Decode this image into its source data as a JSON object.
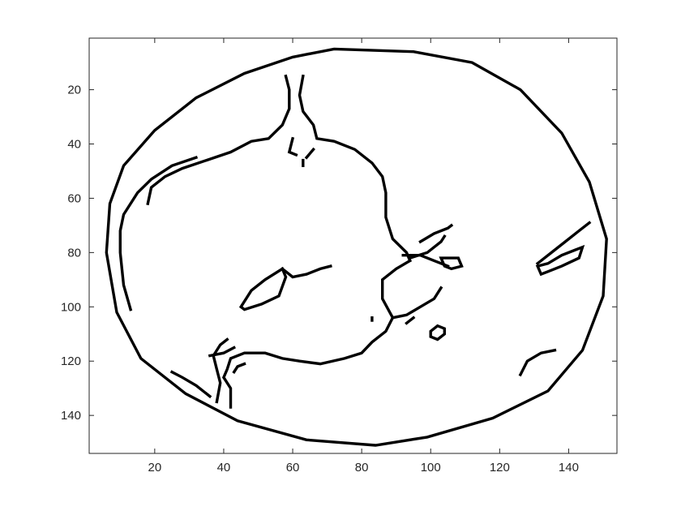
{
  "chart_data": {
    "type": "image",
    "description_type": "binary edge map",
    "xlim": [
      1,
      154
    ],
    "ylim": [
      1,
      154
    ],
    "y_reversed": true,
    "xticks": [
      20,
      40,
      60,
      80,
      100,
      120,
      140
    ],
    "yticks": [
      20,
      40,
      60,
      80,
      100,
      120,
      140
    ],
    "xtick_labels": [
      "20",
      "40",
      "60",
      "80",
      "100",
      "120",
      "140"
    ],
    "ytick_labels": [
      "20",
      "40",
      "60",
      "80",
      "100",
      "120",
      "140"
    ],
    "colors": {
      "edge": "#000000",
      "background": "#ffffff",
      "axis": "#262626"
    },
    "paths": [
      {
        "name": "outer-ellipse",
        "closed": true,
        "points": [
          [
            72,
            5
          ],
          [
            95,
            6
          ],
          [
            112,
            10
          ],
          [
            126,
            20
          ],
          [
            138,
            36
          ],
          [
            146,
            54
          ],
          [
            151,
            75
          ],
          [
            150,
            96
          ],
          [
            144,
            116
          ],
          [
            134,
            131
          ],
          [
            118,
            141
          ],
          [
            99,
            148
          ],
          [
            84,
            151
          ],
          [
            64,
            149
          ],
          [
            44,
            142
          ],
          [
            29,
            132
          ],
          [
            16,
            119
          ],
          [
            9,
            102
          ],
          [
            6,
            80
          ],
          [
            7,
            62
          ],
          [
            11,
            48
          ],
          [
            20,
            35
          ],
          [
            32,
            23
          ],
          [
            46,
            14
          ],
          [
            60,
            8
          ]
        ]
      },
      {
        "name": "inner-left-arc",
        "closed": false,
        "points": [
          [
            13,
            101
          ],
          [
            11,
            92
          ],
          [
            10,
            80
          ],
          [
            10,
            72
          ],
          [
            11,
            66
          ],
          [
            15,
            58
          ],
          [
            19,
            53
          ],
          [
            25,
            48
          ],
          [
            32,
            45
          ]
        ]
      },
      {
        "name": "main-body",
        "closed": false,
        "points": [
          [
            18,
            62
          ],
          [
            19,
            56
          ],
          [
            23,
            52
          ],
          [
            28,
            49
          ],
          [
            35,
            46
          ],
          [
            42,
            43
          ],
          [
            48,
            39
          ],
          [
            53,
            38
          ],
          [
            57,
            33
          ],
          [
            59,
            27
          ],
          [
            59,
            20
          ],
          [
            58,
            15
          ]
        ]
      },
      {
        "name": "stem-right",
        "closed": false,
        "points": [
          [
            63,
            15
          ],
          [
            62,
            22
          ],
          [
            63,
            28
          ],
          [
            66,
            33
          ],
          [
            67,
            38
          ],
          [
            72,
            39
          ],
          [
            78,
            42
          ],
          [
            83,
            47
          ],
          [
            86,
            52
          ],
          [
            87,
            58
          ],
          [
            87,
            67
          ],
          [
            89,
            75
          ],
          [
            93,
            80
          ],
          [
            94,
            83
          ]
        ]
      },
      {
        "name": "stem-fragment",
        "closed": false,
        "points": [
          [
            60,
            38
          ],
          [
            59,
            43
          ],
          [
            61,
            44
          ]
        ]
      },
      {
        "name": "stem-dot",
        "closed": false,
        "points": [
          [
            63,
            46
          ],
          [
            63,
            48
          ]
        ]
      },
      {
        "name": "stem-right-tail",
        "closed": false,
        "points": [
          [
            66,
            42
          ],
          [
            64,
            45
          ]
        ]
      },
      {
        "name": "center-body-lower",
        "closed": false,
        "points": [
          [
            94,
            83
          ],
          [
            90,
            86
          ],
          [
            86,
            90
          ],
          [
            86,
            97
          ],
          [
            89,
            104
          ],
          [
            87,
            109
          ],
          [
            83,
            113
          ],
          [
            80,
            117
          ],
          [
            75,
            119
          ],
          [
            68,
            121
          ],
          [
            62,
            120
          ],
          [
            57,
            119
          ],
          [
            52,
            117
          ],
          [
            46,
            117
          ],
          [
            42,
            119
          ],
          [
            41,
            123
          ],
          [
            40,
            126
          ],
          [
            42,
            130
          ],
          [
            42,
            137
          ]
        ]
      },
      {
        "name": "left-eye",
        "closed": true,
        "points": [
          [
            45,
            100
          ],
          [
            48,
            94
          ],
          [
            52,
            90
          ],
          [
            57,
            86
          ],
          [
            58,
            89
          ],
          [
            56,
            96
          ],
          [
            51,
            99
          ],
          [
            46,
            101
          ]
        ]
      },
      {
        "name": "eye-stroke",
        "closed": false,
        "points": [
          [
            57,
            86
          ],
          [
            60,
            89
          ],
          [
            64,
            88
          ],
          [
            68,
            86
          ],
          [
            71,
            85
          ]
        ]
      },
      {
        "name": "jaw-stroke",
        "closed": false,
        "points": [
          [
            41,
            112
          ],
          [
            39,
            114
          ],
          [
            37,
            118
          ],
          [
            38,
            123
          ],
          [
            39,
            128
          ],
          [
            38,
            135
          ]
        ]
      },
      {
        "name": "chin-stroke",
        "closed": false,
        "points": [
          [
            36,
            118
          ],
          [
            40,
            117
          ],
          [
            43,
            115
          ]
        ]
      },
      {
        "name": "mouth-inner",
        "closed": false,
        "points": [
          [
            43,
            124
          ],
          [
            44,
            122
          ],
          [
            46,
            121
          ]
        ]
      },
      {
        "name": "left-bottom-stroke",
        "closed": false,
        "points": [
          [
            25,
            124
          ],
          [
            28,
            126
          ],
          [
            32,
            129
          ],
          [
            36,
            133
          ]
        ]
      },
      {
        "name": "nose-upper",
        "closed": false,
        "points": [
          [
            97,
            76
          ],
          [
            101,
            73
          ],
          [
            105,
            71
          ],
          [
            106,
            70
          ]
        ]
      },
      {
        "name": "nose-lower",
        "closed": false,
        "points": [
          [
            94,
            82
          ],
          [
            99,
            80
          ],
          [
            103,
            76
          ],
          [
            104,
            74
          ]
        ]
      },
      {
        "name": "nose-bridge",
        "closed": false,
        "points": [
          [
            92,
            81
          ],
          [
            97,
            81
          ],
          [
            101,
            83
          ],
          [
            105,
            85
          ]
        ]
      },
      {
        "name": "nostril",
        "closed": true,
        "points": [
          [
            103,
            82
          ],
          [
            108,
            82
          ],
          [
            109,
            85
          ],
          [
            106,
            86
          ],
          [
            104,
            85
          ]
        ]
      },
      {
        "name": "lower-curve",
        "closed": false,
        "points": [
          [
            89,
            104
          ],
          [
            93,
            103
          ],
          [
            97,
            100
          ],
          [
            101,
            97
          ],
          [
            103,
            93
          ]
        ]
      },
      {
        "name": "lower-curve-tail",
        "closed": false,
        "points": [
          [
            93,
            106
          ],
          [
            95,
            104
          ]
        ]
      },
      {
        "name": "center-dot",
        "closed": false,
        "points": [
          [
            83,
            104
          ],
          [
            83,
            105
          ]
        ]
      },
      {
        "name": "small-oval",
        "closed": true,
        "points": [
          [
            100,
            109
          ],
          [
            102,
            107
          ],
          [
            104,
            108
          ],
          [
            104,
            110
          ],
          [
            102,
            112
          ],
          [
            100,
            111
          ]
        ]
      },
      {
        "name": "right-feature",
        "closed": false,
        "points": [
          [
            131,
            84
          ],
          [
            135,
            80
          ],
          [
            139,
            76
          ],
          [
            143,
            72
          ],
          [
            146,
            69
          ]
        ]
      },
      {
        "name": "right-feature-loop",
        "closed": true,
        "points": [
          [
            131,
            85
          ],
          [
            134,
            84
          ],
          [
            138,
            81
          ],
          [
            142,
            79
          ],
          [
            144,
            78
          ],
          [
            143,
            82
          ],
          [
            138,
            85
          ],
          [
            134,
            87
          ],
          [
            132,
            88
          ]
        ]
      },
      {
        "name": "right-bottom-arc",
        "closed": false,
        "points": [
          [
            126,
            125
          ],
          [
            128,
            120
          ],
          [
            132,
            117
          ],
          [
            136,
            116
          ]
        ]
      }
    ]
  }
}
